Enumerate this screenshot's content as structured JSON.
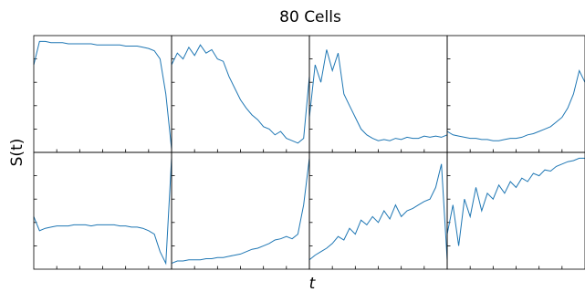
{
  "title": "80 Cells",
  "xlabel": "t",
  "ylabel": "S(t)",
  "chart_data": [
    {
      "type": "line",
      "color": "#1f77b4",
      "xlim": [
        0,
        24
      ],
      "ylim": [
        0,
        1
      ],
      "xticks": [
        4,
        8,
        12,
        16,
        20
      ],
      "yticks": [
        0.2,
        0.4,
        0.6,
        0.8
      ],
      "x": [
        0,
        1,
        2,
        3,
        4,
        5,
        6,
        7,
        8,
        9,
        10,
        11,
        12,
        13,
        14,
        15,
        16,
        17,
        18,
        19,
        20,
        21,
        22,
        23,
        24
      ],
      "values": [
        0.75,
        0.95,
        0.95,
        0.94,
        0.94,
        0.94,
        0.93,
        0.93,
        0.93,
        0.93,
        0.93,
        0.92,
        0.92,
        0.92,
        0.92,
        0.92,
        0.91,
        0.91,
        0.91,
        0.9,
        0.89,
        0.87,
        0.8,
        0.5,
        0.03
      ]
    },
    {
      "type": "line",
      "color": "#1f77b4",
      "xlim": [
        0,
        24
      ],
      "ylim": [
        0,
        1
      ],
      "xticks": [
        4,
        8,
        12,
        16,
        20
      ],
      "yticks": [
        0.2,
        0.4,
        0.6,
        0.8
      ],
      "x": [
        0,
        1,
        2,
        3,
        4,
        5,
        6,
        7,
        8,
        9,
        10,
        11,
        12,
        13,
        14,
        15,
        16,
        17,
        18,
        19,
        20,
        21,
        22,
        23,
        24
      ],
      "values": [
        0.75,
        0.85,
        0.8,
        0.9,
        0.83,
        0.92,
        0.85,
        0.88,
        0.8,
        0.78,
        0.65,
        0.55,
        0.45,
        0.38,
        0.32,
        0.28,
        0.22,
        0.2,
        0.15,
        0.18,
        0.12,
        0.1,
        0.08,
        0.12,
        0.65
      ]
    },
    {
      "type": "line",
      "color": "#1f77b4",
      "xlim": [
        0,
        24
      ],
      "ylim": [
        0,
        1
      ],
      "xticks": [
        4,
        8,
        12,
        16,
        20
      ],
      "yticks": [
        0.2,
        0.4,
        0.6,
        0.8
      ],
      "x": [
        0,
        1,
        2,
        3,
        4,
        5,
        6,
        7,
        8,
        9,
        10,
        11,
        12,
        13,
        14,
        15,
        16,
        17,
        18,
        19,
        20,
        21,
        22,
        23,
        24
      ],
      "values": [
        0.3,
        0.75,
        0.6,
        0.88,
        0.7,
        0.85,
        0.5,
        0.4,
        0.3,
        0.2,
        0.15,
        0.12,
        0.1,
        0.11,
        0.1,
        0.12,
        0.11,
        0.13,
        0.12,
        0.12,
        0.14,
        0.13,
        0.14,
        0.13,
        0.15
      ]
    },
    {
      "type": "line",
      "color": "#1f77b4",
      "xlim": [
        0,
        24
      ],
      "ylim": [
        0,
        1
      ],
      "xticks": [
        4,
        8,
        12,
        16,
        20
      ],
      "yticks": [
        0.2,
        0.4,
        0.6,
        0.8
      ],
      "x": [
        0,
        1,
        2,
        3,
        4,
        5,
        6,
        7,
        8,
        9,
        10,
        11,
        12,
        13,
        14,
        15,
        16,
        17,
        18,
        19,
        20,
        21,
        22,
        23,
        24
      ],
      "values": [
        0.18,
        0.15,
        0.14,
        0.13,
        0.12,
        0.12,
        0.11,
        0.11,
        0.1,
        0.1,
        0.11,
        0.12,
        0.12,
        0.13,
        0.15,
        0.16,
        0.18,
        0.2,
        0.22,
        0.26,
        0.3,
        0.38,
        0.5,
        0.7,
        0.6
      ]
    },
    {
      "type": "line",
      "color": "#1f77b4",
      "xlim": [
        0,
        24
      ],
      "ylim": [
        0,
        1
      ],
      "xticks": [
        4,
        8,
        12,
        16,
        20
      ],
      "yticks": [
        0.2,
        0.4,
        0.6,
        0.8
      ],
      "x": [
        0,
        1,
        2,
        3,
        4,
        5,
        6,
        7,
        8,
        9,
        10,
        11,
        12,
        13,
        14,
        15,
        16,
        17,
        18,
        19,
        20,
        21,
        22,
        23,
        24
      ],
      "values": [
        0.45,
        0.33,
        0.35,
        0.36,
        0.37,
        0.37,
        0.37,
        0.38,
        0.38,
        0.38,
        0.37,
        0.38,
        0.38,
        0.38,
        0.38,
        0.37,
        0.37,
        0.36,
        0.36,
        0.35,
        0.33,
        0.3,
        0.15,
        0.05,
        0.95
      ]
    },
    {
      "type": "line",
      "color": "#1f77b4",
      "xlim": [
        0,
        24
      ],
      "ylim": [
        0,
        1
      ],
      "xticks": [
        4,
        8,
        12,
        16,
        20
      ],
      "yticks": [
        0.2,
        0.4,
        0.6,
        0.8
      ],
      "x": [
        0,
        1,
        2,
        3,
        4,
        5,
        6,
        7,
        8,
        9,
        10,
        11,
        12,
        13,
        14,
        15,
        16,
        17,
        18,
        19,
        20,
        21,
        22,
        23,
        24
      ],
      "values": [
        0.05,
        0.07,
        0.07,
        0.08,
        0.08,
        0.08,
        0.09,
        0.09,
        0.1,
        0.1,
        0.11,
        0.12,
        0.13,
        0.15,
        0.17,
        0.18,
        0.2,
        0.22,
        0.25,
        0.26,
        0.28,
        0.26,
        0.3,
        0.55,
        0.95
      ]
    },
    {
      "type": "line",
      "color": "#1f77b4",
      "xlim": [
        0,
        24
      ],
      "ylim": [
        0,
        1
      ],
      "xticks": [
        4,
        8,
        12,
        16,
        20
      ],
      "yticks": [
        0.2,
        0.4,
        0.6,
        0.8
      ],
      "x": [
        0,
        1,
        2,
        3,
        4,
        5,
        6,
        7,
        8,
        9,
        10,
        11,
        12,
        13,
        14,
        15,
        16,
        17,
        18,
        19,
        20,
        21,
        22,
        23,
        24
      ],
      "values": [
        0.08,
        0.12,
        0.15,
        0.18,
        0.22,
        0.28,
        0.25,
        0.35,
        0.3,
        0.42,
        0.38,
        0.45,
        0.4,
        0.5,
        0.43,
        0.55,
        0.45,
        0.5,
        0.52,
        0.55,
        0.58,
        0.6,
        0.7,
        0.9,
        0.08
      ]
    },
    {
      "type": "line",
      "color": "#1f77b4",
      "xlim": [
        0,
        24
      ],
      "ylim": [
        0,
        1
      ],
      "xticks": [
        4,
        8,
        12,
        16,
        20
      ],
      "yticks": [
        0.2,
        0.4,
        0.6,
        0.8
      ],
      "x": [
        0,
        1,
        2,
        3,
        4,
        5,
        6,
        7,
        8,
        9,
        10,
        11,
        12,
        13,
        14,
        15,
        16,
        17,
        18,
        19,
        20,
        21,
        22,
        23,
        24
      ],
      "values": [
        0.3,
        0.55,
        0.2,
        0.6,
        0.45,
        0.7,
        0.5,
        0.65,
        0.6,
        0.72,
        0.65,
        0.75,
        0.7,
        0.78,
        0.75,
        0.82,
        0.8,
        0.85,
        0.84,
        0.88,
        0.9,
        0.92,
        0.93,
        0.95,
        0.95
      ]
    }
  ]
}
